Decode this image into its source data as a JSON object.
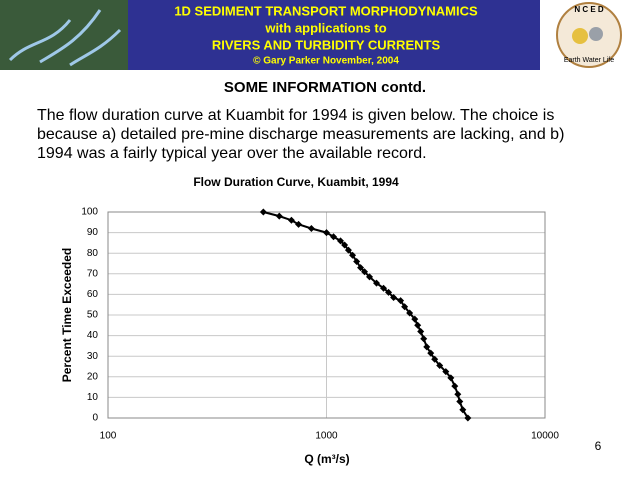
{
  "header": {
    "title_lines": [
      "1D SEDIMENT TRANSPORT MORPHODYNAMICS",
      "with applications to",
      "RIVERS AND TURBIDITY CURRENTS"
    ],
    "credit": "© Gary Parker November, 2004",
    "logo_letters": "N C E D",
    "logo_motto": "Earth Water Life"
  },
  "section_title": "SOME INFORMATION contd.",
  "paragraph_lines": [
    "The flow duration curve at Kuambit for 1994 is given below.  The choice is",
    "because a) detailed pre-mine discharge measurements are lacking, and b)",
    "1994 was a fairly typical year over the available record."
  ],
  "slide_number": "6",
  "chart_data": {
    "type": "line",
    "title": "Flow Duration Curve, Kuambit, 1994",
    "x_label": "Q (m³/s)",
    "y_label": "Percent Time Exceeded",
    "x_scale": "log",
    "xlim": [
      100,
      10000
    ],
    "xticks": [
      100,
      1000,
      10000
    ],
    "ylim": [
      0,
      100
    ],
    "yticks": [
      0,
      10,
      20,
      30,
      40,
      50,
      60,
      70,
      80,
      90,
      100
    ],
    "grid": true,
    "marker": "diamond",
    "series": [
      {
        "color": "#000000",
        "x": [
          514,
          608,
          691,
          745,
          853,
          1000,
          1077,
          1159,
          1210,
          1260,
          1316,
          1374,
          1432,
          1493,
          1574,
          1694,
          1824,
          1923,
          2028,
          2183,
          2278,
          2402,
          2535,
          2614,
          2698,
          2786,
          2876,
          3000,
          3127,
          3296,
          3516,
          3707,
          3864,
          3990,
          4074,
          4206,
          4436
        ],
        "values": [
          100,
          98,
          96,
          94,
          92,
          90,
          88,
          86,
          84,
          81.5,
          79,
          76,
          73,
          71,
          68.5,
          65.5,
          63,
          61,
          58.5,
          57,
          54,
          51,
          48,
          45,
          42,
          38.5,
          34.5,
          31.5,
          28.5,
          25.5,
          22.5,
          19.5,
          15.5,
          11.5,
          8,
          4,
          0
        ]
      }
    ]
  }
}
